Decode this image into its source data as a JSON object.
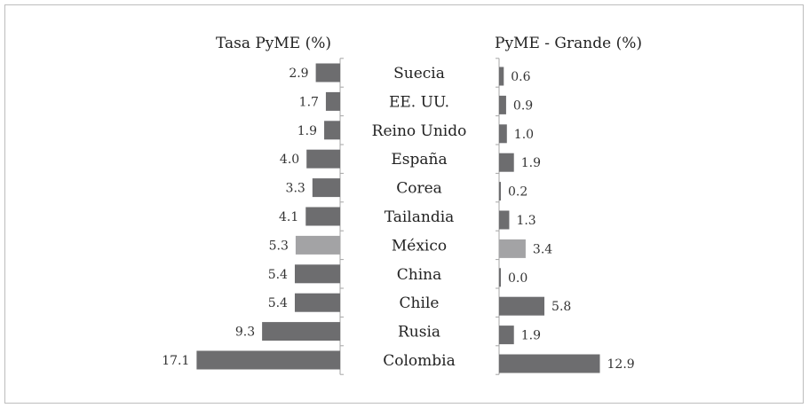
{
  "chart_data": {
    "type": "bar",
    "orientation": "horizontal",
    "layout": "back-to-back",
    "categories": [
      "Suecia",
      "EE. UU.",
      "Reino Unido",
      "España",
      "Corea",
      "Tailandia",
      "México",
      "China",
      "Chile",
      "Rusia",
      "Colombia"
    ],
    "highlight_category": "México",
    "series": [
      {
        "name": "Tasa PyME (%)",
        "values": [
          2.9,
          1.7,
          1.9,
          4.0,
          3.3,
          4.1,
          5.3,
          5.4,
          5.4,
          9.3,
          17.1
        ],
        "labels": [
          "2.9",
          "1.7",
          "1.9",
          "4.0",
          "3.3",
          "4.1",
          "5.3",
          "5.4",
          "5.4",
          "9.3",
          "17.1"
        ],
        "direction": "left"
      },
      {
        "name": "PyME - Grande (%)",
        "values": [
          0.6,
          0.9,
          1.0,
          1.9,
          0.2,
          1.3,
          3.4,
          0.0,
          5.8,
          1.9,
          12.9
        ],
        "labels": [
          "0.6",
          "0.9",
          "1.0",
          "1.9",
          "0.2",
          "1.3",
          "3.4",
          "0.0",
          "5.8",
          "1.9",
          "12.9"
        ],
        "direction": "right"
      }
    ],
    "grid": false,
    "colors": {
      "bar": "#6d6d6f",
      "highlight": "#a3a3a5",
      "axis": "#a6a6a6",
      "text": "#222222"
    }
  }
}
